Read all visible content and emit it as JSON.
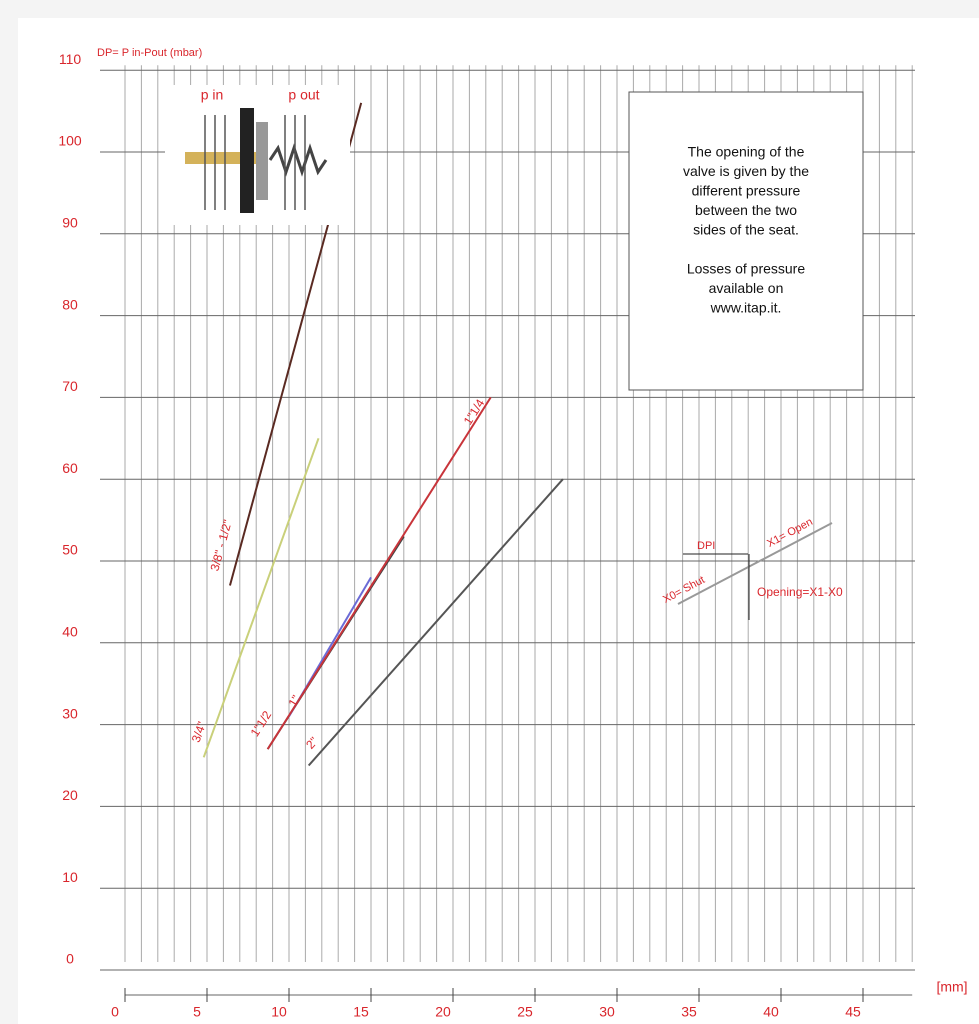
{
  "chart_data": {
    "type": "line",
    "y_label": "DP= P in-Pout (mbar)",
    "x_label": "[mm]",
    "xlim": [
      0,
      48
    ],
    "ylim": [
      0,
      110
    ],
    "xticks": [
      0,
      5,
      10,
      15,
      20,
      25,
      30,
      35,
      40,
      45
    ],
    "yticks": [
      0,
      10,
      20,
      30,
      40,
      50,
      60,
      70,
      80,
      90,
      100,
      110
    ],
    "grid": true,
    "series": [
      {
        "name": "3/8\" - 1/2\"",
        "color": "#5a2a22",
        "x": [
          6.4,
          14.4
        ],
        "values": [
          47,
          106
        ]
      },
      {
        "name": "3/4\"",
        "color": "#c9d07a",
        "x": [
          4.8,
          11.8
        ],
        "values": [
          26,
          65
        ]
      },
      {
        "name": "1\"1/2",
        "color": "#444444",
        "x": [
          8.7,
          17
        ],
        "values": [
          27,
          53
        ]
      },
      {
        "name": "1\"",
        "color": "#6b6bd6",
        "x": [
          10,
          15
        ],
        "values": [
          31,
          48
        ]
      },
      {
        "name": "1\"1/4",
        "color": "#c8343a",
        "x": [
          8.7,
          22.3
        ],
        "values": [
          27,
          70
        ]
      },
      {
        "name": "2\"",
        "color": "#555555",
        "x": [
          11.2,
          26.7
        ],
        "values": [
          25,
          60
        ]
      }
    ],
    "inset_labels": [
      "p in",
      "p out"
    ],
    "note_lines": [
      "The opening of the",
      "valve is given by the",
      "different pressure",
      "between the two",
      "sides of the seat.",
      "",
      "Losses of pressure",
      "available on",
      "www.itap.it."
    ],
    "legend_diagram": {
      "dpi": "DPI",
      "shut": "X0= Shut",
      "open": "X1= Open",
      "opening": "Opening=X1-X0"
    }
  }
}
